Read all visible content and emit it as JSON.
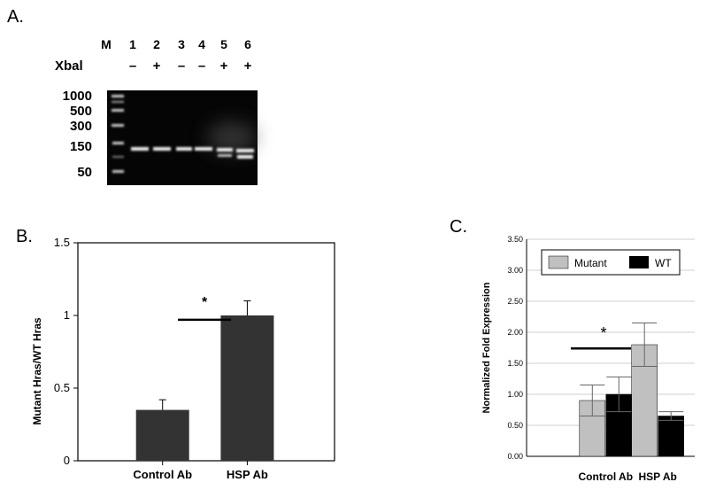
{
  "panel_a": {
    "label": "A.",
    "marker_lane_label": "M",
    "lanes": [
      "1",
      "2",
      "3",
      "4",
      "5",
      "6"
    ],
    "row_label": "Xbal",
    "treatments": [
      "–",
      "+",
      "–",
      "–",
      "+",
      "+"
    ],
    "marker_sizes": [
      "1000",
      "500",
      "300",
      "150",
      "50"
    ]
  },
  "chart_data": [
    {
      "panel": "B.",
      "type": "bar",
      "categories": [
        "Control Ab",
        "HSP Ab"
      ],
      "values": [
        0.35,
        1.0
      ],
      "errors": [
        0.07,
        0.1
      ],
      "ylabel": "Mutant Hras/WT Hras",
      "xlabel": "",
      "ylim": [
        0,
        1.5
      ],
      "yticks": [
        "0",
        "0.5",
        "1",
        "1.5"
      ],
      "annotation": "*",
      "colors": {
        "bar": "#333333"
      }
    },
    {
      "panel": "C.",
      "type": "bar",
      "categories": [
        "Control Ab",
        "HSP Ab"
      ],
      "series": [
        {
          "name": "Mutant",
          "values": [
            0.9,
            1.8
          ],
          "errors": [
            0.25,
            0.35
          ],
          "color": "#c0c0c0"
        },
        {
          "name": "WT",
          "values": [
            1.0,
            0.65
          ],
          "errors": [
            0.28,
            0.07
          ],
          "color": "#000000"
        }
      ],
      "ylabel": "Normalized Fold Expression",
      "xlabel": "",
      "ylim": [
        0,
        3.5
      ],
      "yticks": [
        "0.00",
        "0.50",
        "1.00",
        "1.50",
        "2.00",
        "2.50",
        "3.00",
        "3.50"
      ],
      "grid": true,
      "legend": "top",
      "annotation": "*"
    }
  ]
}
